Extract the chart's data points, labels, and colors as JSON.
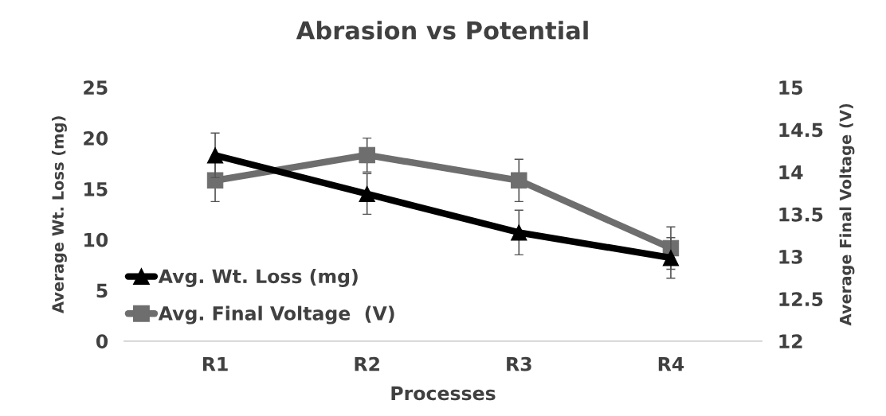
{
  "chart_data": {
    "type": "line",
    "title": "Abrasion vs Potential",
    "xlabel": "Processes",
    "ylabel": "Average Wt. Loss (mg)",
    "y2label": "Average Final Voltage (V)",
    "categories": [
      "R1",
      "R2",
      "R3",
      "R4"
    ],
    "series": [
      {
        "name": "Avg. Wt. Loss (mg)",
        "color": "#000000",
        "values": [
          18.3,
          14.5,
          10.7,
          8.2
        ],
        "errors": [
          2.2,
          2,
          2.2,
          2
        ],
        "marker": "triangle"
      },
      {
        "name": "Avg. Final Voltage  (V)",
        "color": "#6e6e6e",
        "values": [
          13.9,
          14.2,
          13.9,
          13.1
        ],
        "errors": [
          0.25,
          0.2,
          0.25,
          0.25
        ],
        "marker": "square",
        "axis": "y2"
      }
    ],
    "ylim": [
      0,
      25
    ],
    "yticks": [
      0,
      5,
      10,
      15,
      20,
      25
    ],
    "y2lim": [
      12,
      15
    ],
    "y2ticks": [
      12,
      12.5,
      13,
      13.5,
      14,
      14.5,
      15
    ],
    "legend": "bottom left",
    "grid": false,
    "line_style": "solid"
  }
}
